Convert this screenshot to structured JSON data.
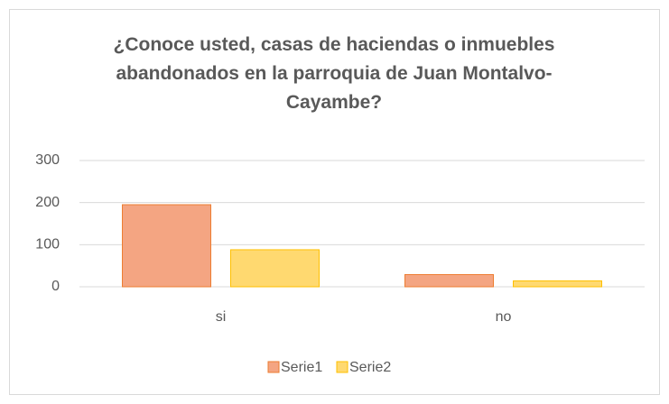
{
  "chart_data": {
    "type": "bar",
    "title": "¿Conoce usted, casas de haciendas o inmuebles abandonados en la parroquia de Juan Montalvo- Cayambe?",
    "categories": [
      "si",
      "no"
    ],
    "series": [
      {
        "name": "Serie1",
        "color": "#f4a582",
        "values": [
          195,
          29
        ]
      },
      {
        "name": "Serie2",
        "color": "#ffd970",
        "values": [
          88,
          14
        ]
      }
    ],
    "ylim": [
      0,
      300
    ],
    "yticks": [
      0,
      100,
      200,
      300
    ],
    "grid": true,
    "legend": "bottom"
  }
}
